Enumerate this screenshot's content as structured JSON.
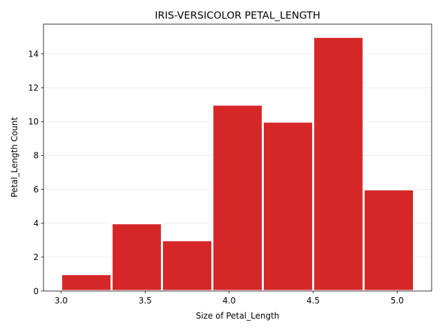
{
  "chart_data": {
    "type": "bar",
    "title": "IRIS-VERSICOLOR PETAL_LENGTH",
    "xlabel": "Size of Petal_Length",
    "ylabel": "Petal_Length Count",
    "bins": [
      {
        "start": 3.0,
        "end": 3.3,
        "count": 1
      },
      {
        "start": 3.3,
        "end": 3.6,
        "count": 4
      },
      {
        "start": 3.6,
        "end": 3.9,
        "count": 3
      },
      {
        "start": 3.9,
        "end": 4.2,
        "count": 11
      },
      {
        "start": 4.2,
        "end": 4.5,
        "count": 10
      },
      {
        "start": 4.5,
        "end": 4.8,
        "count": 15
      },
      {
        "start": 4.8,
        "end": 5.1,
        "count": 6
      }
    ],
    "xlim": [
      2.895,
      5.205
    ],
    "ylim": [
      0,
      15.75
    ],
    "xticks": [
      "3.0",
      "3.5",
      "4.0",
      "4.5",
      "5.0"
    ],
    "yticks": [
      "0",
      "2",
      "4",
      "6",
      "8",
      "10",
      "12",
      "14"
    ],
    "grid": "horizontal",
    "bar_color": "#d62728",
    "bar_edge_color": "#ffffff"
  }
}
